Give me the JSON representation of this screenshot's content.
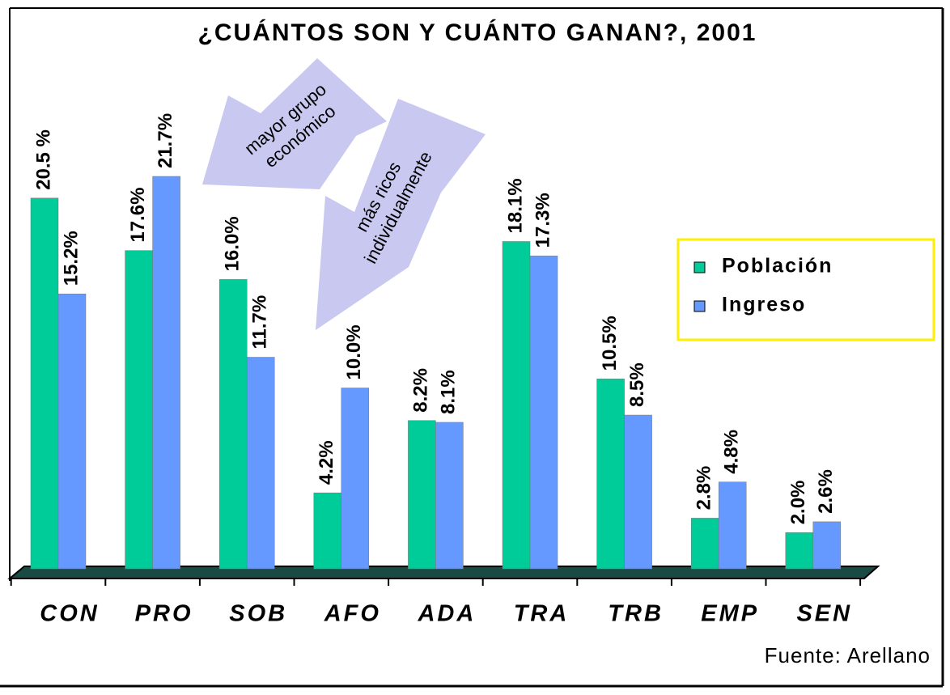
{
  "chart_data": {
    "type": "bar",
    "title": "¿CUÁNTOS SON Y CUÁNTO GANAN?, 2001",
    "categories": [
      "CON",
      "PRO",
      "SOB",
      "AFO",
      "ADA",
      "TRA",
      "TRB",
      "EMP",
      "SEN"
    ],
    "series": [
      {
        "name": "Población",
        "color": "#00cc99",
        "values": [
          20.5,
          17.6,
          16.0,
          4.2,
          8.2,
          18.1,
          10.5,
          2.8,
          2.0
        ],
        "value_labels": [
          "20.5 %",
          "17.6%",
          "16.0%",
          "4.2%",
          "8.2%",
          "18.1%",
          "10.5%",
          "2.8%",
          "2.0%"
        ]
      },
      {
        "name": "Ingreso",
        "color": "#6699ff",
        "values": [
          15.2,
          21.7,
          11.7,
          10.0,
          8.1,
          17.3,
          8.5,
          4.8,
          2.6
        ],
        "value_labels": [
          "15.2%",
          "21.7%",
          "11.7%",
          "10.0%",
          "8.1%",
          "17.3%",
          "8.5%",
          "4.8%",
          "2.6%"
        ]
      }
    ],
    "annotations": [
      [
        "mayor grupo",
        "económico"
      ],
      [
        "más ricos",
        "individualmente"
      ]
    ],
    "source": "Fuente: Arellano"
  }
}
